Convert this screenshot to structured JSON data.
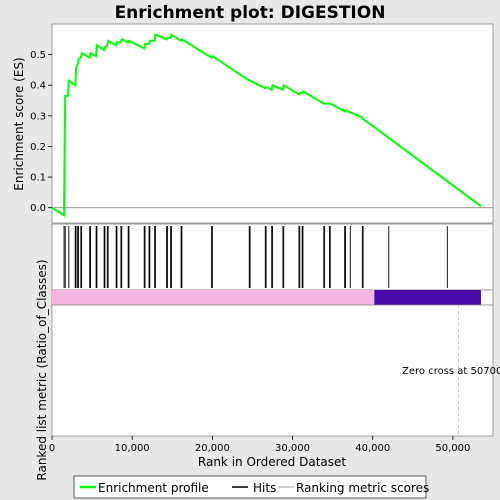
{
  "chart_data": {
    "type": "line",
    "title": "Enrichment plot: DIGESTION",
    "xlabel": "Rank in Ordered Dataset",
    "ylabel_top": "Enrichment score (ES)",
    "ylabel_bottom": "Ranked list metric (Ratio_of_Classes)",
    "xlim": [
      0,
      55000
    ],
    "ylim": [
      -0.05,
      0.6
    ],
    "x_ticks": [
      0,
      10000,
      20000,
      30000,
      40000,
      50000
    ],
    "x_tick_labels": [
      "0",
      "10,000",
      "20,000",
      "30,000",
      "40,000",
      "50,000"
    ],
    "y_ticks": [
      0.0,
      0.1,
      0.2,
      0.3,
      0.4,
      0.5
    ],
    "y_tick_labels": [
      "0.0",
      "0.1",
      "0.2",
      "0.3",
      "0.4",
      "0.5"
    ],
    "series": [
      {
        "name": "Enrichment profile",
        "color": "#00ff00",
        "x": [
          0,
          1500,
          1600,
          1650,
          2000,
          2100,
          2900,
          3000,
          3200,
          3300,
          3600,
          3700,
          4700,
          4800,
          5500,
          5600,
          6500,
          6600,
          6900,
          7000,
          8000,
          8100,
          8600,
          8700,
          9500,
          9600,
          11500,
          11600,
          12100,
          12200,
          12800,
          12900,
          14300,
          14400,
          14800,
          14900,
          16100,
          16200,
          19900,
          20000,
          24600,
          24700,
          26600,
          26700,
          27400,
          27500,
          28800,
          28900,
          30800,
          30900,
          31200,
          31300,
          33900,
          34000,
          34600,
          34700,
          36500,
          36600,
          38700,
          38800,
          53500
        ],
        "y": [
          0.0,
          -0.025,
          0.24,
          0.365,
          0.365,
          0.415,
          0.4,
          0.455,
          0.47,
          0.485,
          0.49,
          0.505,
          0.49,
          0.505,
          0.495,
          0.53,
          0.515,
          0.525,
          0.53,
          0.545,
          0.53,
          0.54,
          0.54,
          0.55,
          0.54,
          0.545,
          0.52,
          0.535,
          0.535,
          0.545,
          0.545,
          0.565,
          0.55,
          0.555,
          0.555,
          0.565,
          0.545,
          0.55,
          0.49,
          0.495,
          0.415,
          0.415,
          0.39,
          0.395,
          0.385,
          0.4,
          0.385,
          0.4,
          0.37,
          0.375,
          0.375,
          0.38,
          0.34,
          0.34,
          0.34,
          0.34,
          0.315,
          0.318,
          0.295,
          0.29,
          0.005
        ]
      }
    ],
    "hits": [
      1500,
      1650,
      2100,
      2900,
      3000,
      3200,
      3300,
      3600,
      3700,
      4700,
      4800,
      5500,
      5600,
      6500,
      6600,
      6900,
      7000,
      8000,
      8100,
      8600,
      8700,
      9500,
      9600,
      11500,
      11600,
      12100,
      12200,
      12800,
      12900,
      14300,
      14400,
      14800,
      14900,
      16100,
      16200,
      19900,
      20000,
      24600,
      24700,
      26600,
      26700,
      27400,
      27500,
      28800,
      28900,
      30800,
      30900,
      31200,
      31300,
      33900,
      34000,
      34600,
      34700,
      36500,
      36600,
      37200,
      38700,
      38800,
      42000,
      49300
    ],
    "metric": {
      "positive_until": 40200,
      "end": 53500,
      "positive_color": "#f4b6e0",
      "negative_color": "#4b0aab"
    },
    "zero_cross_x": 50700,
    "zero_cross_label": "Zero cross at 50700",
    "legend": {
      "position": "bottom",
      "items": [
        {
          "label": "Enrichment profile",
          "color": "#00ff00"
        },
        {
          "label": "Hits",
          "color": "#000000"
        },
        {
          "label": "Ranking metric scores",
          "color": "#c0c0c0"
        }
      ]
    },
    "grid": false,
    "background": "#e8e8e8",
    "panel_color": "#ffffff"
  }
}
